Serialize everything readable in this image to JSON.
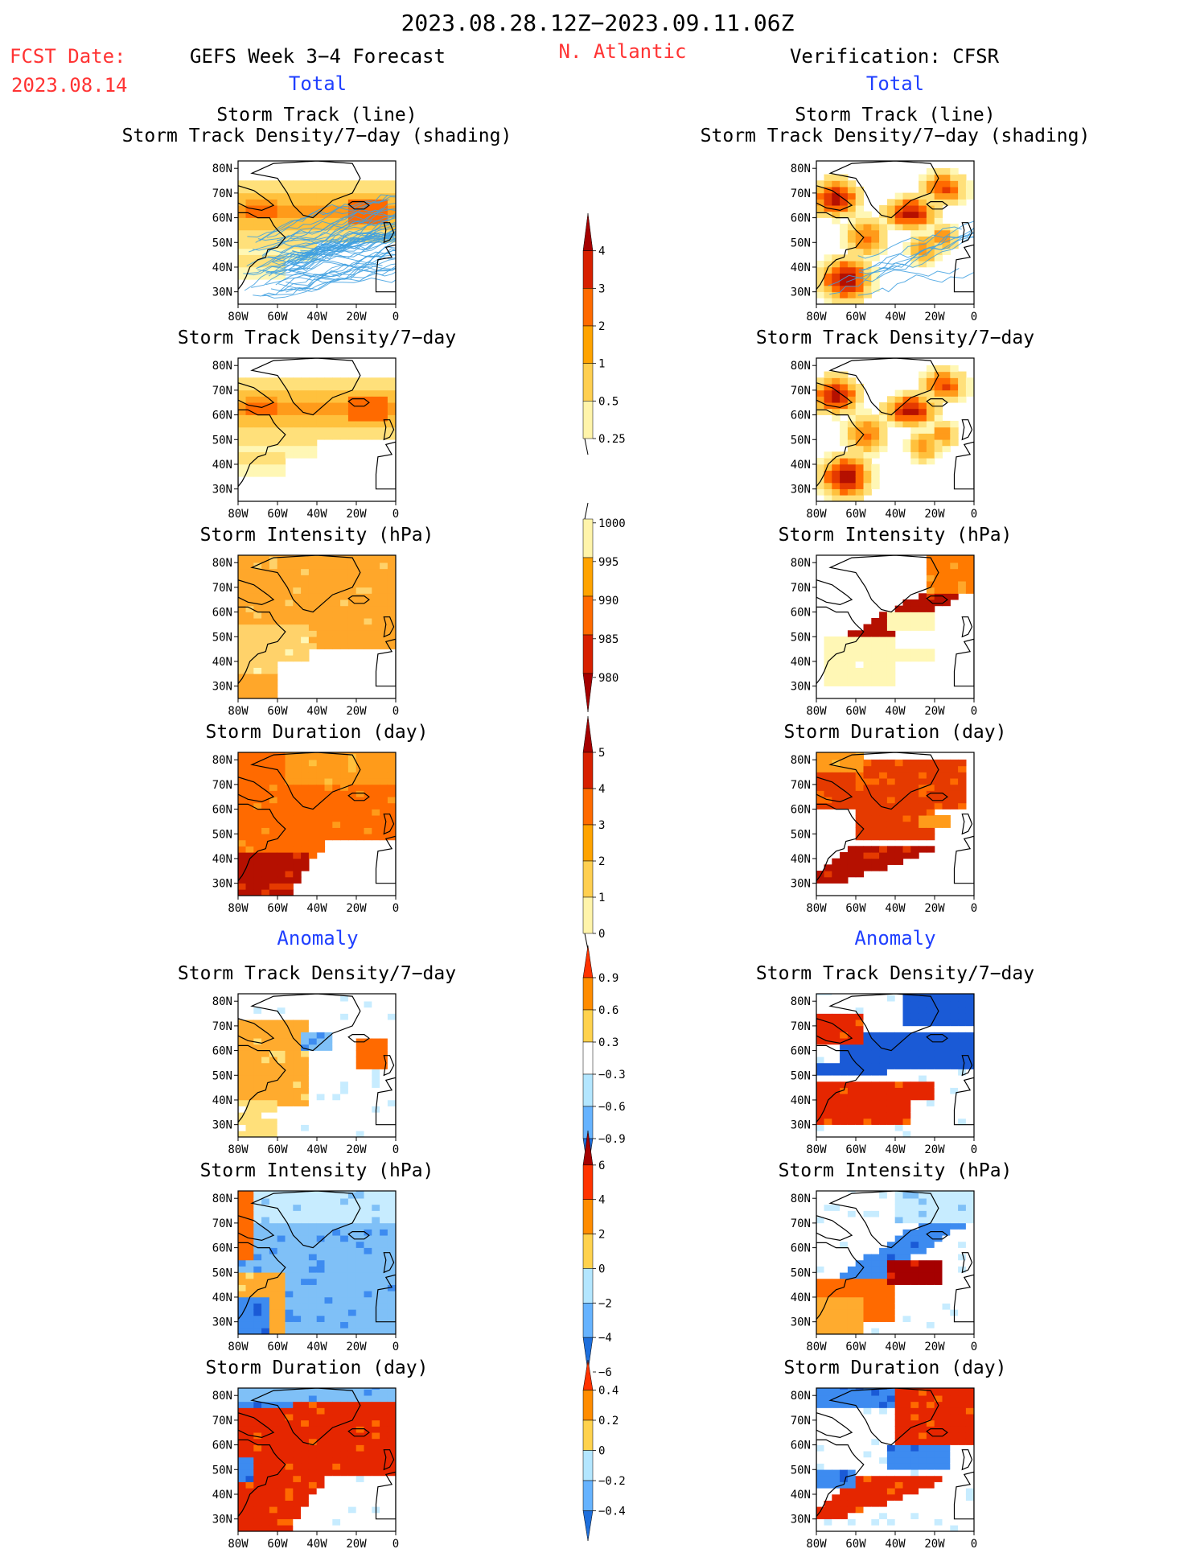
{
  "header": {
    "date_range": "2023.08.28.12Z−2023.09.11.06Z",
    "fcst_label": "FCST Date:",
    "fcst_date": "2023.08.14",
    "model_title": "GEFS Week 3−4 Forecast",
    "region": "N. Atlantic",
    "verification": "Verification: CFSR",
    "total_left": "Total",
    "total_right": "Total",
    "anomaly_left": "Anomaly",
    "anomaly_right": "Anomaly"
  },
  "colors": {
    "title_black": "#000000",
    "fcst_red": "#ff3333",
    "section_blue": "#1f3fff",
    "track_line": "#3fa0e0"
  },
  "chart_data": [
    {
      "type": "heatmap",
      "id": "fc-track",
      "title": "Storm Track (line)",
      "subtitle": "Storm Track Density/7−day (shading)",
      "side": "forecast",
      "x_ticks": [
        "80W",
        "60W",
        "40W",
        "20W",
        "0"
      ],
      "y_ticks": [
        "80N",
        "70N",
        "60N",
        "50N",
        "40N",
        "30N"
      ],
      "xlim": [
        -80,
        0
      ],
      "ylim": [
        25,
        83
      ],
      "legend": "center-colorbar"
    },
    {
      "type": "heatmap",
      "id": "vf-track",
      "title": "Storm Track (line)",
      "subtitle": "Storm Track Density/7−day (shading)",
      "side": "verification",
      "x_ticks": [
        "80W",
        "60W",
        "40W",
        "20W",
        "0"
      ],
      "y_ticks": [
        "80N",
        "70N",
        "60N",
        "50N",
        "40N",
        "30N"
      ],
      "xlim": [
        -80,
        0
      ],
      "ylim": [
        25,
        83
      ]
    },
    {
      "type": "heatmap",
      "id": "fc-density",
      "title": "Storm Track Density/7−day",
      "side": "forecast",
      "x_ticks": [
        "80W",
        "60W",
        "40W",
        "20W",
        "0"
      ],
      "y_ticks": [
        "80N",
        "70N",
        "60N",
        "50N",
        "40N",
        "30N"
      ],
      "xlim": [
        -80,
        0
      ],
      "ylim": [
        25,
        83
      ]
    },
    {
      "type": "heatmap",
      "id": "vf-density",
      "title": "Storm Track Density/7−day",
      "side": "verification",
      "x_ticks": [
        "80W",
        "60W",
        "40W",
        "20W",
        "0"
      ],
      "y_ticks": [
        "80N",
        "70N",
        "60N",
        "50N",
        "40N",
        "30N"
      ],
      "xlim": [
        -80,
        0
      ],
      "ylim": [
        25,
        83
      ]
    },
    {
      "type": "heatmap",
      "id": "fc-intensity",
      "title": "Storm Intensity (hPa)",
      "side": "forecast",
      "x_ticks": [
        "80W",
        "60W",
        "40W",
        "20W",
        "0"
      ],
      "y_ticks": [
        "80N",
        "70N",
        "60N",
        "50N",
        "40N",
        "30N"
      ],
      "xlim": [
        -80,
        0
      ],
      "ylim": [
        25,
        83
      ]
    },
    {
      "type": "heatmap",
      "id": "vf-intensity",
      "title": "Storm Intensity (hPa)",
      "side": "verification",
      "x_ticks": [
        "80W",
        "60W",
        "40W",
        "20W",
        "0"
      ],
      "y_ticks": [
        "80N",
        "70N",
        "60N",
        "50N",
        "40N",
        "30N"
      ],
      "xlim": [
        -80,
        0
      ],
      "ylim": [
        25,
        83
      ]
    },
    {
      "type": "heatmap",
      "id": "fc-duration",
      "title": "Storm Duration (day)",
      "side": "forecast",
      "x_ticks": [
        "80W",
        "60W",
        "40W",
        "20W",
        "0"
      ],
      "y_ticks": [
        "80N",
        "70N",
        "60N",
        "50N",
        "40N",
        "30N"
      ],
      "xlim": [
        -80,
        0
      ],
      "ylim": [
        25,
        83
      ]
    },
    {
      "type": "heatmap",
      "id": "vf-duration",
      "title": "Storm Duration (day)",
      "side": "verification",
      "x_ticks": [
        "80W",
        "60W",
        "40W",
        "20W",
        "0"
      ],
      "y_ticks": [
        "80N",
        "70N",
        "60N",
        "50N",
        "40N",
        "30N"
      ],
      "xlim": [
        -80,
        0
      ],
      "ylim": [
        25,
        83
      ]
    },
    {
      "type": "heatmap",
      "id": "fc-anom-density",
      "title": "Storm Track Density/7−day",
      "side": "forecast",
      "x_ticks": [
        "80W",
        "60W",
        "40W",
        "20W",
        "0"
      ],
      "y_ticks": [
        "80N",
        "70N",
        "60N",
        "50N",
        "40N",
        "30N"
      ],
      "xlim": [
        -80,
        0
      ],
      "ylim": [
        25,
        83
      ]
    },
    {
      "type": "heatmap",
      "id": "vf-anom-density",
      "title": "Storm Track Density/7−day",
      "side": "verification",
      "x_ticks": [
        "80W",
        "60W",
        "40W",
        "20W",
        "0"
      ],
      "y_ticks": [
        "80N",
        "70N",
        "60N",
        "50N",
        "40N",
        "30N"
      ],
      "xlim": [
        -80,
        0
      ],
      "ylim": [
        25,
        83
      ]
    },
    {
      "type": "heatmap",
      "id": "fc-anom-intensity",
      "title": "Storm Intensity (hPa)",
      "side": "forecast",
      "x_ticks": [
        "80W",
        "60W",
        "40W",
        "20W",
        "0"
      ],
      "y_ticks": [
        "80N",
        "70N",
        "60N",
        "50N",
        "40N",
        "30N"
      ],
      "xlim": [
        -80,
        0
      ],
      "ylim": [
        25,
        83
      ]
    },
    {
      "type": "heatmap",
      "id": "vf-anom-intensity",
      "title": "Storm Intensity (hPa)",
      "side": "verification",
      "x_ticks": [
        "80W",
        "60W",
        "40W",
        "20W",
        "0"
      ],
      "y_ticks": [
        "80N",
        "70N",
        "60N",
        "50N",
        "40N",
        "30N"
      ],
      "xlim": [
        -80,
        0
      ],
      "ylim": [
        25,
        83
      ]
    },
    {
      "type": "heatmap",
      "id": "fc-anom-duration",
      "title": "Storm Duration (day)",
      "side": "forecast",
      "x_ticks": [
        "80W",
        "60W",
        "40W",
        "20W",
        "0"
      ],
      "y_ticks": [
        "80N",
        "70N",
        "60N",
        "50N",
        "40N",
        "30N"
      ],
      "xlim": [
        -80,
        0
      ],
      "ylim": [
        25,
        83
      ]
    },
    {
      "type": "heatmap",
      "id": "vf-anom-duration",
      "title": "Storm Duration (day)",
      "side": "verification",
      "x_ticks": [
        "80W",
        "60W",
        "40W",
        "20W",
        "0"
      ],
      "y_ticks": [
        "80N",
        "70N",
        "60N",
        "50N",
        "40N",
        "30N"
      ],
      "xlim": [
        -80,
        0
      ],
      "ylim": [
        25,
        83
      ]
    }
  ],
  "colorbars": [
    {
      "id": "cb-density",
      "labels": [
        "4",
        "3",
        "2",
        "1",
        "0.5",
        "0.25"
      ],
      "colors": [
        "#a50000",
        "#d72000",
        "#ff6a00",
        "#ffa300",
        "#ffcf50",
        "#fff4aa"
      ]
    },
    {
      "id": "cb-intensity",
      "labels": [
        "1000",
        "995",
        "990",
        "985",
        "980"
      ],
      "colors": [
        "#fff4aa",
        "#ffa300",
        "#ff6a00",
        "#d72000",
        "#a50000"
      ]
    },
    {
      "id": "cb-duration",
      "labels": [
        "5",
        "4",
        "3",
        "2",
        "1",
        "0"
      ],
      "colors": [
        "#a50000",
        "#d72000",
        "#ff6a00",
        "#ffa300",
        "#ffcf50",
        "#fff4aa"
      ]
    },
    {
      "id": "cb-anom-density",
      "labels": [
        "0.9",
        "0.6",
        "0.3",
        "−0.3",
        "−0.6",
        "−0.9"
      ],
      "colors": [
        "#ff3300",
        "#ff8c00",
        "#ffd24d",
        "#ffffff",
        "#b3e6ff",
        "#66b3ff",
        "#1e6fdc"
      ]
    },
    {
      "id": "cb-anom-intensity",
      "labels": [
        "6",
        "4",
        "2",
        "0",
        "−2",
        "−4",
        "−6"
      ],
      "colors": [
        "#a50000",
        "#ff3300",
        "#ff8c00",
        "#ffd24d",
        "#b3e6ff",
        "#66b3ff",
        "#1e6fdc"
      ]
    },
    {
      "id": "cb-anom-duration",
      "labels": [
        "0.4",
        "0.2",
        "0",
        "−0.2",
        "−0.4"
      ],
      "colors": [
        "#ff3300",
        "#ff8c00",
        "#ffd24d",
        "#b3e6ff",
        "#66b3ff",
        "#1e6fdc"
      ]
    }
  ]
}
